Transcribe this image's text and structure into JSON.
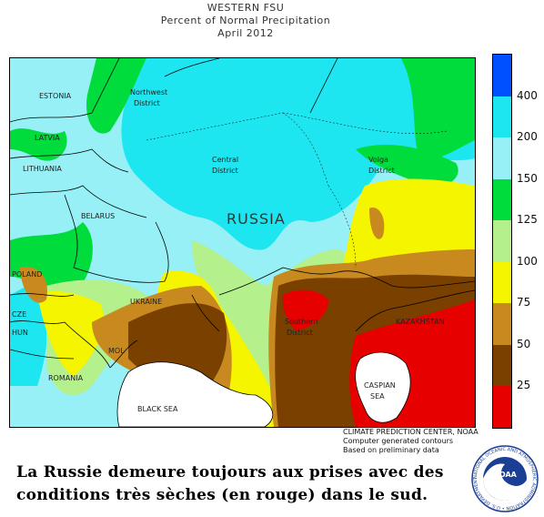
{
  "title": {
    "line1": "WESTERN FSU",
    "line2": "Percent of Normal Precipitation",
    "line3": "April 2012"
  },
  "legend": {
    "bands": [
      {
        "color": "#e60000",
        "label": "25"
      },
      {
        "color": "#7a4000",
        "label": "50"
      },
      {
        "color": "#c88a1e",
        "label": "75"
      },
      {
        "color": "#f5f500",
        "label": "100"
      },
      {
        "color": "#b4f08c",
        "label": "125"
      },
      {
        "color": "#00dc3c",
        "label": "150"
      },
      {
        "color": "#96f0f5",
        "label": "200"
      },
      {
        "color": "#1ee6f0",
        "label": "400"
      },
      {
        "color": "#0050ff",
        "label": ""
      }
    ]
  },
  "map": {
    "labels": {
      "estonia": "ESTONIA",
      "latvia": "LATVIA",
      "lithuania": "LITHUANIA",
      "belarus": "BELARUS",
      "poland": "POLAND",
      "czech": "CZE",
      "hungary": "HUN",
      "moldova": "MOL",
      "romania": "ROMANIA",
      "ukraine": "UKRAINE",
      "russia": "RUSSIA",
      "kazakhstan": "KAZAKHSTAN",
      "northwest": [
        "Northwest",
        "District"
      ],
      "central": [
        "Central",
        "District"
      ],
      "volga": [
        "Volga",
        "District"
      ],
      "southern": [
        "Southern",
        "District"
      ],
      "black_sea": "BLACK SEA",
      "caspian": [
        "CASPIAN",
        "SEA"
      ]
    }
  },
  "credit": {
    "line1": "CLIMATE PREDICTION CENTER, NOAA",
    "line2": "Computer generated contours",
    "line3": "Based on preliminary data"
  },
  "caption": {
    "line1": "La Russie demeure toujours aux prises avec des",
    "line2": "conditions très sèches (en rouge) dans le sud."
  },
  "logo": {
    "text": "NOAA",
    "ring_text": "NATIONAL OCEANIC AND ATMOSPHERIC ADMINISTRATION • U.S. DEPARTMENT OF COMMERCE",
    "color": "#1b3f94"
  }
}
